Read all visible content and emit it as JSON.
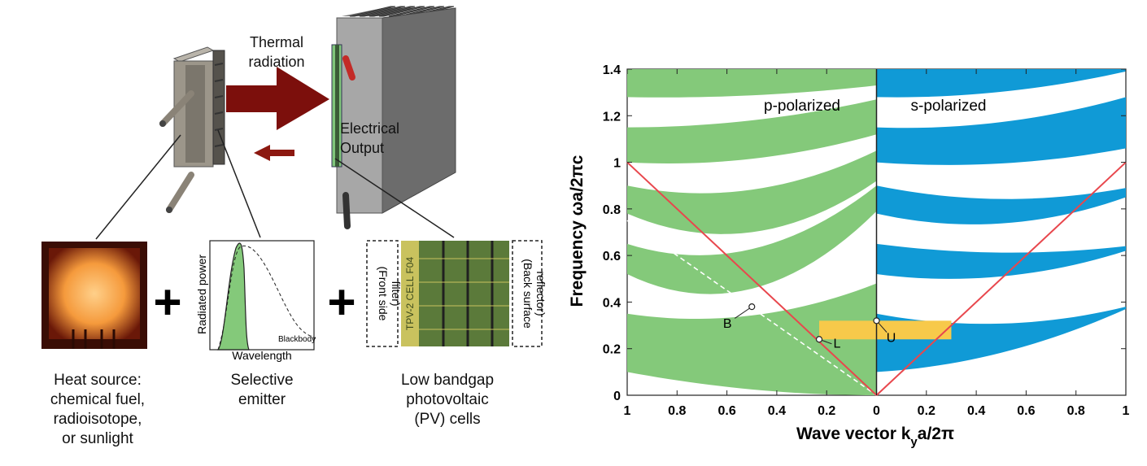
{
  "left": {
    "arrow_label_line1": "Thermal",
    "arrow_label_line2": "radiation",
    "output_line1": "Electrical",
    "output_line2": "Output",
    "heat_source": [
      "Heat source:",
      "chemical fuel,",
      "radioisotope,",
      "or sunlight"
    ],
    "emitter": [
      "Selective",
      "emitter"
    ],
    "pv": [
      "Low bandgap",
      "photovoltaic",
      "(PV) cells"
    ],
    "inset_ylabel": "Radiated power",
    "inset_xlabel": "Wavelength",
    "inset_blackbody": "Blackbody",
    "front_filter": [
      "(Front side",
      "filter)"
    ],
    "back_reflector": [
      "(Back surface",
      "reflector)"
    ],
    "cell_text": "TPV-2 CELL F04",
    "plus": "+"
  },
  "chart_data": {
    "type": "area",
    "ylabel": "Frequency  ωa/2πc",
    "xlabel": "Wave vector  k",
    "xlabel_sub": "y",
    "xlabel_tail": "a/2π",
    "y_ticks": [
      "0",
      "0.2",
      "0.4",
      "0.6",
      "0.8",
      "1",
      "1.2",
      "1.4"
    ],
    "x_ticks": [
      "1",
      "0.8",
      "0.6",
      "0.4",
      "0.2",
      "0",
      "0.2",
      "0.4",
      "0.6",
      "0.8",
      "1"
    ],
    "ylim": [
      0,
      1.4
    ],
    "xlim": [
      -1,
      1
    ],
    "panel_left": "p-polarized",
    "panel_right": "s-polarized",
    "colors": {
      "p_bands": "#84c97a",
      "s_bands": "#109ad6",
      "light_line": "#e8474d",
      "gap": "#f7c94a"
    },
    "point_labels": {
      "B": "B",
      "L": "L",
      "U": "U"
    },
    "points": [
      {
        "name": "B",
        "x": -0.5,
        "y": 0.38
      },
      {
        "name": "L",
        "x": -0.23,
        "y": 0.24
      },
      {
        "name": "U",
        "x": 0.0,
        "y": 0.32
      }
    ],
    "gap_band": {
      "x_from": -0.23,
      "x_to": 0.3,
      "y_from": 0.24,
      "y_to": 0.32
    },
    "p_bands": [
      {
        "lower": [
          0.0,
          0.0,
          0.1
        ],
        "upper": [
          0.48,
          0.27,
          0.35
        ]
      },
      {
        "lower": [
          0.79,
          0.26,
          0.52
        ],
        "upper": [
          0.9,
          0.48,
          0.65
        ]
      },
      {
        "lower": [
          0.92,
          0.55,
          0.78
        ],
        "upper": [
          1.05,
          0.79,
          0.9
        ]
      },
      {
        "lower": [
          1.12,
          0.97,
          1.0
        ],
        "upper": [
          1.27,
          1.15,
          1.15
        ]
      },
      {
        "lower": [
          1.33,
          1.27,
          1.28
        ],
        "upper": [
          1.4,
          1.4,
          1.4
        ]
      }
    ],
    "s_bands": [
      {
        "lower": [
          0.0,
          0.13,
          0.37
        ],
        "upper": [
          0.0,
          0.25,
          0.38
        ]
      },
      {
        "lower": [
          0.0,
          0.45,
          0.62
        ],
        "upper": [
          0.0,
          0.58,
          0.64
        ]
      },
      {
        "lower": [
          0.0,
          0.66,
          0.85
        ],
        "upper": [
          0.0,
          0.79,
          0.89
        ]
      },
      {
        "lower": [
          0.0,
          0.96,
          1.06
        ],
        "upper": [
          0.0,
          1.13,
          1.28
        ]
      },
      {
        "lower": [
          0.0,
          1.27,
          1.39
        ],
        "upper": [
          0.0,
          1.4,
          1.4
        ]
      }
    ]
  }
}
